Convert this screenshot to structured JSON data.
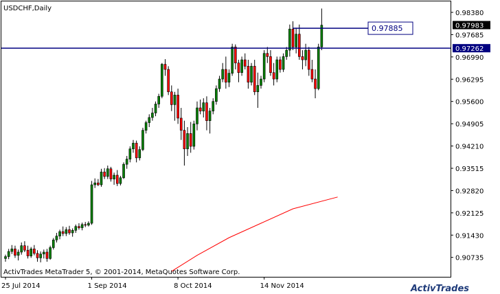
{
  "header": {
    "title": "USDCHF,Daily"
  },
  "footer": {
    "copyright": "ActivTrades MetaTrader 5, © 2001-2014, MetaQuotes Software Corp.",
    "logo": "ActivTrades"
  },
  "colors": {
    "bull": "#008000",
    "bear": "#ff0000",
    "wick": "#000000",
    "hline": "#000080",
    "sma": "#ff0000",
    "grid_border": "#000000",
    "price_box": "#000000",
    "hline_box": "#000080"
  },
  "chart_data": {
    "type": "candlestick",
    "symbol": "USDCHF",
    "timeframe": "Daily",
    "ylim": [
      0.903,
      0.9868
    ],
    "y_ticks": [
      "0.98380",
      "0.97685",
      "0.96990",
      "0.96295",
      "0.95600",
      "0.94905",
      "0.94210",
      "0.93515",
      "0.92820",
      "0.92125",
      "0.91430",
      "0.90735"
    ],
    "x_ticks": [
      {
        "label": "25 Jul 2014",
        "index": 0
      },
      {
        "label": "1 Sep 2014",
        "index": 27
      },
      {
        "label": "8 Oct 2014",
        "index": 54
      },
      {
        "label": "14 Nov 2014",
        "index": 81
      }
    ],
    "current_price": "0.97983",
    "horizontal_lines": [
      {
        "price": 0.97262,
        "label": "0.97262"
      },
      {
        "price": 0.97885,
        "label": "0.97885",
        "label_boxed": true
      }
    ],
    "sma_points": [
      [
        52,
        0.903
      ],
      [
        60,
        0.908
      ],
      [
        70,
        0.9135
      ],
      [
        80,
        0.918
      ],
      [
        90,
        0.9225
      ],
      [
        104,
        0.9262
      ]
    ],
    "candles": [
      [
        0.907,
        0.9082,
        0.906,
        0.9076
      ],
      [
        0.9076,
        0.91,
        0.9068,
        0.9092
      ],
      [
        0.9092,
        0.9112,
        0.9084,
        0.91
      ],
      [
        0.91,
        0.911,
        0.9072,
        0.908
      ],
      [
        0.908,
        0.9098,
        0.9064,
        0.909
      ],
      [
        0.909,
        0.912,
        0.9082,
        0.911
      ],
      [
        0.911,
        0.9124,
        0.909,
        0.9096
      ],
      [
        0.9096,
        0.911,
        0.907,
        0.9078
      ],
      [
        0.9078,
        0.9106,
        0.9072,
        0.91
      ],
      [
        0.91,
        0.9112,
        0.908,
        0.9086
      ],
      [
        0.9086,
        0.9096,
        0.906,
        0.9072
      ],
      [
        0.9072,
        0.9092,
        0.9058,
        0.9084
      ],
      [
        0.9084,
        0.9098,
        0.907,
        0.909
      ],
      [
        0.909,
        0.91,
        0.906,
        0.907
      ],
      [
        0.907,
        0.911,
        0.9066,
        0.9104
      ],
      [
        0.9104,
        0.9134,
        0.9098,
        0.9128
      ],
      [
        0.9128,
        0.915,
        0.912,
        0.914
      ],
      [
        0.914,
        0.916,
        0.913,
        0.9154
      ],
      [
        0.9154,
        0.917,
        0.914,
        0.9148
      ],
      [
        0.9148,
        0.9168,
        0.914,
        0.916
      ],
      [
        0.916,
        0.9172,
        0.9144,
        0.915
      ],
      [
        0.915,
        0.9164,
        0.9138,
        0.9158
      ],
      [
        0.9158,
        0.9176,
        0.915,
        0.917
      ],
      [
        0.917,
        0.918,
        0.916,
        0.9166
      ],
      [
        0.9166,
        0.9182,
        0.9158,
        0.9176
      ],
      [
        0.9176,
        0.9184,
        0.9168,
        0.9174
      ],
      [
        0.9174,
        0.9186,
        0.917,
        0.918
      ],
      [
        0.918,
        0.9312,
        0.9175,
        0.93
      ],
      [
        0.93,
        0.932,
        0.929,
        0.9306
      ],
      [
        0.9306,
        0.9318,
        0.9296,
        0.93
      ],
      [
        0.93,
        0.935,
        0.9294,
        0.934
      ],
      [
        0.934,
        0.9352,
        0.9318,
        0.9326
      ],
      [
        0.9326,
        0.936,
        0.9318,
        0.935
      ],
      [
        0.935,
        0.9356,
        0.931,
        0.9318
      ],
      [
        0.9318,
        0.9338,
        0.93,
        0.933
      ],
      [
        0.933,
        0.9346,
        0.9296,
        0.9304
      ],
      [
        0.9304,
        0.9328,
        0.9298,
        0.9322
      ],
      [
        0.9322,
        0.937,
        0.9318,
        0.9364
      ],
      [
        0.9364,
        0.939,
        0.935,
        0.938
      ],
      [
        0.938,
        0.942,
        0.937,
        0.9412
      ],
      [
        0.9412,
        0.944,
        0.94,
        0.943
      ],
      [
        0.943,
        0.9438,
        0.937,
        0.9384
      ],
      [
        0.9384,
        0.942,
        0.9376,
        0.941
      ],
      [
        0.941,
        0.9478,
        0.9405,
        0.947
      ],
      [
        0.947,
        0.95,
        0.946,
        0.9494
      ],
      [
        0.9494,
        0.952,
        0.948,
        0.951
      ],
      [
        0.951,
        0.954,
        0.95,
        0.9524
      ],
      [
        0.9524,
        0.956,
        0.9514,
        0.9552
      ],
      [
        0.9552,
        0.9584,
        0.954,
        0.9576
      ],
      [
        0.9576,
        0.968,
        0.957,
        0.9676
      ],
      [
        0.9676,
        0.9692,
        0.964,
        0.966
      ],
      [
        0.966,
        0.967,
        0.958,
        0.959
      ],
      [
        0.959,
        0.961,
        0.953,
        0.955
      ],
      [
        0.955,
        0.959,
        0.95,
        0.958
      ],
      [
        0.958,
        0.96,
        0.949,
        0.9508
      ],
      [
        0.9508,
        0.954,
        0.944,
        0.947
      ],
      [
        0.947,
        0.95,
        0.936,
        0.9412
      ],
      [
        0.9412,
        0.948,
        0.939,
        0.946
      ],
      [
        0.946,
        0.9496,
        0.94,
        0.942
      ],
      [
        0.942,
        0.95,
        0.941,
        0.949
      ],
      [
        0.949,
        0.956,
        0.947,
        0.954
      ],
      [
        0.954,
        0.9566,
        0.952,
        0.953
      ],
      [
        0.953,
        0.957,
        0.951,
        0.9556
      ],
      [
        0.9556,
        0.9576,
        0.947,
        0.95
      ],
      [
        0.95,
        0.954,
        0.946,
        0.953
      ],
      [
        0.953,
        0.957,
        0.952,
        0.956
      ],
      [
        0.956,
        0.961,
        0.955,
        0.96
      ],
      [
        0.96,
        0.964,
        0.959,
        0.963
      ],
      [
        0.963,
        0.968,
        0.962,
        0.966
      ],
      [
        0.966,
        0.97,
        0.96,
        0.962
      ],
      [
        0.962,
        0.966,
        0.9605,
        0.9648
      ],
      [
        0.9648,
        0.974,
        0.964,
        0.973
      ],
      [
        0.973,
        0.9738,
        0.966,
        0.968
      ],
      [
        0.968,
        0.969,
        0.962,
        0.965
      ],
      [
        0.965,
        0.97,
        0.964,
        0.969
      ],
      [
        0.969,
        0.971,
        0.966,
        0.967
      ],
      [
        0.967,
        0.969,
        0.96,
        0.962
      ],
      [
        0.962,
        0.968,
        0.961,
        0.967
      ],
      [
        0.967,
        0.969,
        0.958,
        0.959
      ],
      [
        0.959,
        0.965,
        0.954,
        0.961
      ],
      [
        0.961,
        0.964,
        0.96,
        0.963
      ],
      [
        0.963,
        0.972,
        0.962,
        0.971
      ],
      [
        0.971,
        0.973,
        0.968,
        0.97
      ],
      [
        0.97,
        0.972,
        0.964,
        0.965
      ],
      [
        0.965,
        0.968,
        0.961,
        0.963
      ],
      [
        0.963,
        0.97,
        0.962,
        0.969
      ],
      [
        0.969,
        0.97,
        0.965,
        0.966
      ],
      [
        0.966,
        0.971,
        0.9652,
        0.97
      ],
      [
        0.97,
        0.973,
        0.969,
        0.972
      ],
      [
        0.972,
        0.98,
        0.97,
        0.9786
      ],
      [
        0.9786,
        0.981,
        0.972,
        0.973
      ],
      [
        0.973,
        0.979,
        0.971,
        0.977
      ],
      [
        0.977,
        0.98,
        0.969,
        0.97
      ],
      [
        0.97,
        0.972,
        0.966,
        0.969
      ],
      [
        0.969,
        0.974,
        0.967,
        0.972
      ],
      [
        0.972,
        0.973,
        0.964,
        0.966
      ],
      [
        0.966,
        0.969,
        0.962,
        0.963
      ],
      [
        0.963,
        0.966,
        0.957,
        0.96
      ],
      [
        0.96,
        0.974,
        0.9595,
        0.973
      ],
      [
        0.973,
        0.985,
        0.972,
        0.9798
      ]
    ]
  }
}
